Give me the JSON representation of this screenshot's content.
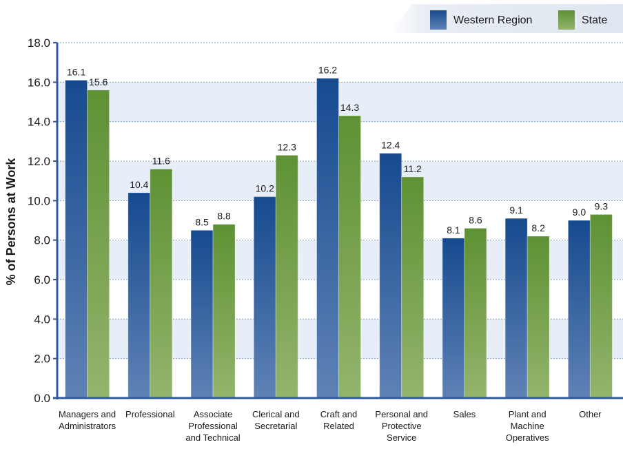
{
  "chart_data": {
    "type": "bar",
    "ylabel": "% of Persons at Work",
    "ylim": [
      0,
      18
    ],
    "yticks": [
      "0.0",
      "2.0",
      "4.0",
      "6.0",
      "8.0",
      "10.0",
      "12.0",
      "14.0",
      "16.0",
      "18.0"
    ],
    "grid": true,
    "legend_position": "top-right",
    "categories": [
      [
        "Managers and",
        "Administrators"
      ],
      [
        "Professional"
      ],
      [
        "Associate",
        "Professional",
        "and Technical"
      ],
      [
        "Clerical and",
        "Secretarial"
      ],
      [
        "Craft and",
        "Related"
      ],
      [
        "Personal and",
        "Protective",
        "Service"
      ],
      [
        "Sales"
      ],
      [
        "Plant and",
        "Machine",
        "Operatives"
      ],
      [
        "Other"
      ]
    ],
    "series": [
      {
        "name": "Western Region",
        "color": "#1f4f96",
        "values": [
          16.1,
          10.4,
          8.5,
          10.2,
          16.2,
          12.4,
          8.1,
          9.1,
          9.0
        ],
        "labels": [
          "16.1",
          "10.4",
          "8.5",
          "10.2",
          "16.2",
          "12.4",
          "8.1",
          "9.1",
          "9.0"
        ]
      },
      {
        "name": "State",
        "color": "#6a9a3e",
        "values": [
          15.6,
          11.6,
          8.8,
          12.3,
          14.3,
          11.2,
          8.6,
          8.2,
          9.3
        ],
        "labels": [
          "15.6",
          "11.6",
          "8.8",
          "12.3",
          "14.3",
          "11.2",
          "8.6",
          "8.2",
          "9.3"
        ]
      }
    ]
  }
}
